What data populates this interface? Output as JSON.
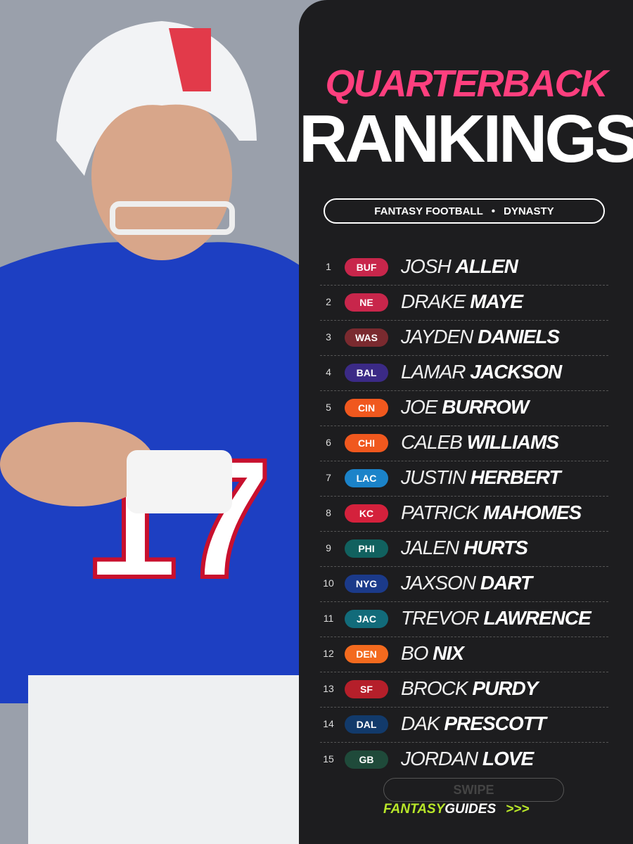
{
  "header": {
    "title_line1": "QUARTERBACK",
    "title_line2": "RANKINGS",
    "tag_left": "FANTASY FOOTBALL",
    "tag_sep": "•",
    "tag_right": "DYNASTY"
  },
  "rankings": [
    {
      "rank": 1,
      "team": "BUF",
      "first": "JOSH",
      "last": "ALLEN",
      "color": "#c8264b"
    },
    {
      "rank": 2,
      "team": "NE",
      "first": "DRAKE",
      "last": "MAYE",
      "color": "#c8264b"
    },
    {
      "rank": 3,
      "team": "WAS",
      "first": "JAYDEN",
      "last": "DANIELS",
      "color": "#7a2a2f"
    },
    {
      "rank": 4,
      "team": "BAL",
      "first": "LAMAR",
      "last": "JACKSON",
      "color": "#3b2a86"
    },
    {
      "rank": 5,
      "team": "CIN",
      "first": "JOE",
      "last": "BURROW",
      "color": "#f0581e"
    },
    {
      "rank": 6,
      "team": "CHI",
      "first": "CALEB",
      "last": "WILLIAMS",
      "color": "#f0581e"
    },
    {
      "rank": 7,
      "team": "LAC",
      "first": "JUSTIN",
      "last": "HERBERT",
      "color": "#1b83c9"
    },
    {
      "rank": 8,
      "team": "KC",
      "first": "PATRICK",
      "last": "MAHOMES",
      "color": "#d4213c"
    },
    {
      "rank": 9,
      "team": "PHI",
      "first": "JALEN",
      "last": "HURTS",
      "color": "#11615f"
    },
    {
      "rank": 10,
      "team": "NYG",
      "first": "JAXSON",
      "last": "DART",
      "color": "#1b3a8a"
    },
    {
      "rank": 11,
      "team": "JAC",
      "first": "TREVOR",
      "last": "LAWRENCE",
      "color": "#126b7a"
    },
    {
      "rank": 12,
      "team": "DEN",
      "first": "BO",
      "last": "NIX",
      "color": "#f36a1e"
    },
    {
      "rank": 13,
      "team": "SF",
      "first": "BROCK",
      "last": "PURDY",
      "color": "#b51f2a"
    },
    {
      "rank": 14,
      "team": "DAL",
      "first": "DAK",
      "last": "PRESCOTT",
      "color": "#123a6b"
    },
    {
      "rank": 15,
      "team": "GB",
      "first": "JORDAN",
      "last": "LOVE",
      "color": "#1f4a3a"
    }
  ],
  "footer": {
    "swipe": "SWIPE",
    "brand_left": "FANTASY",
    "brand_right": "GUIDES",
    "arrows": ">>>"
  }
}
